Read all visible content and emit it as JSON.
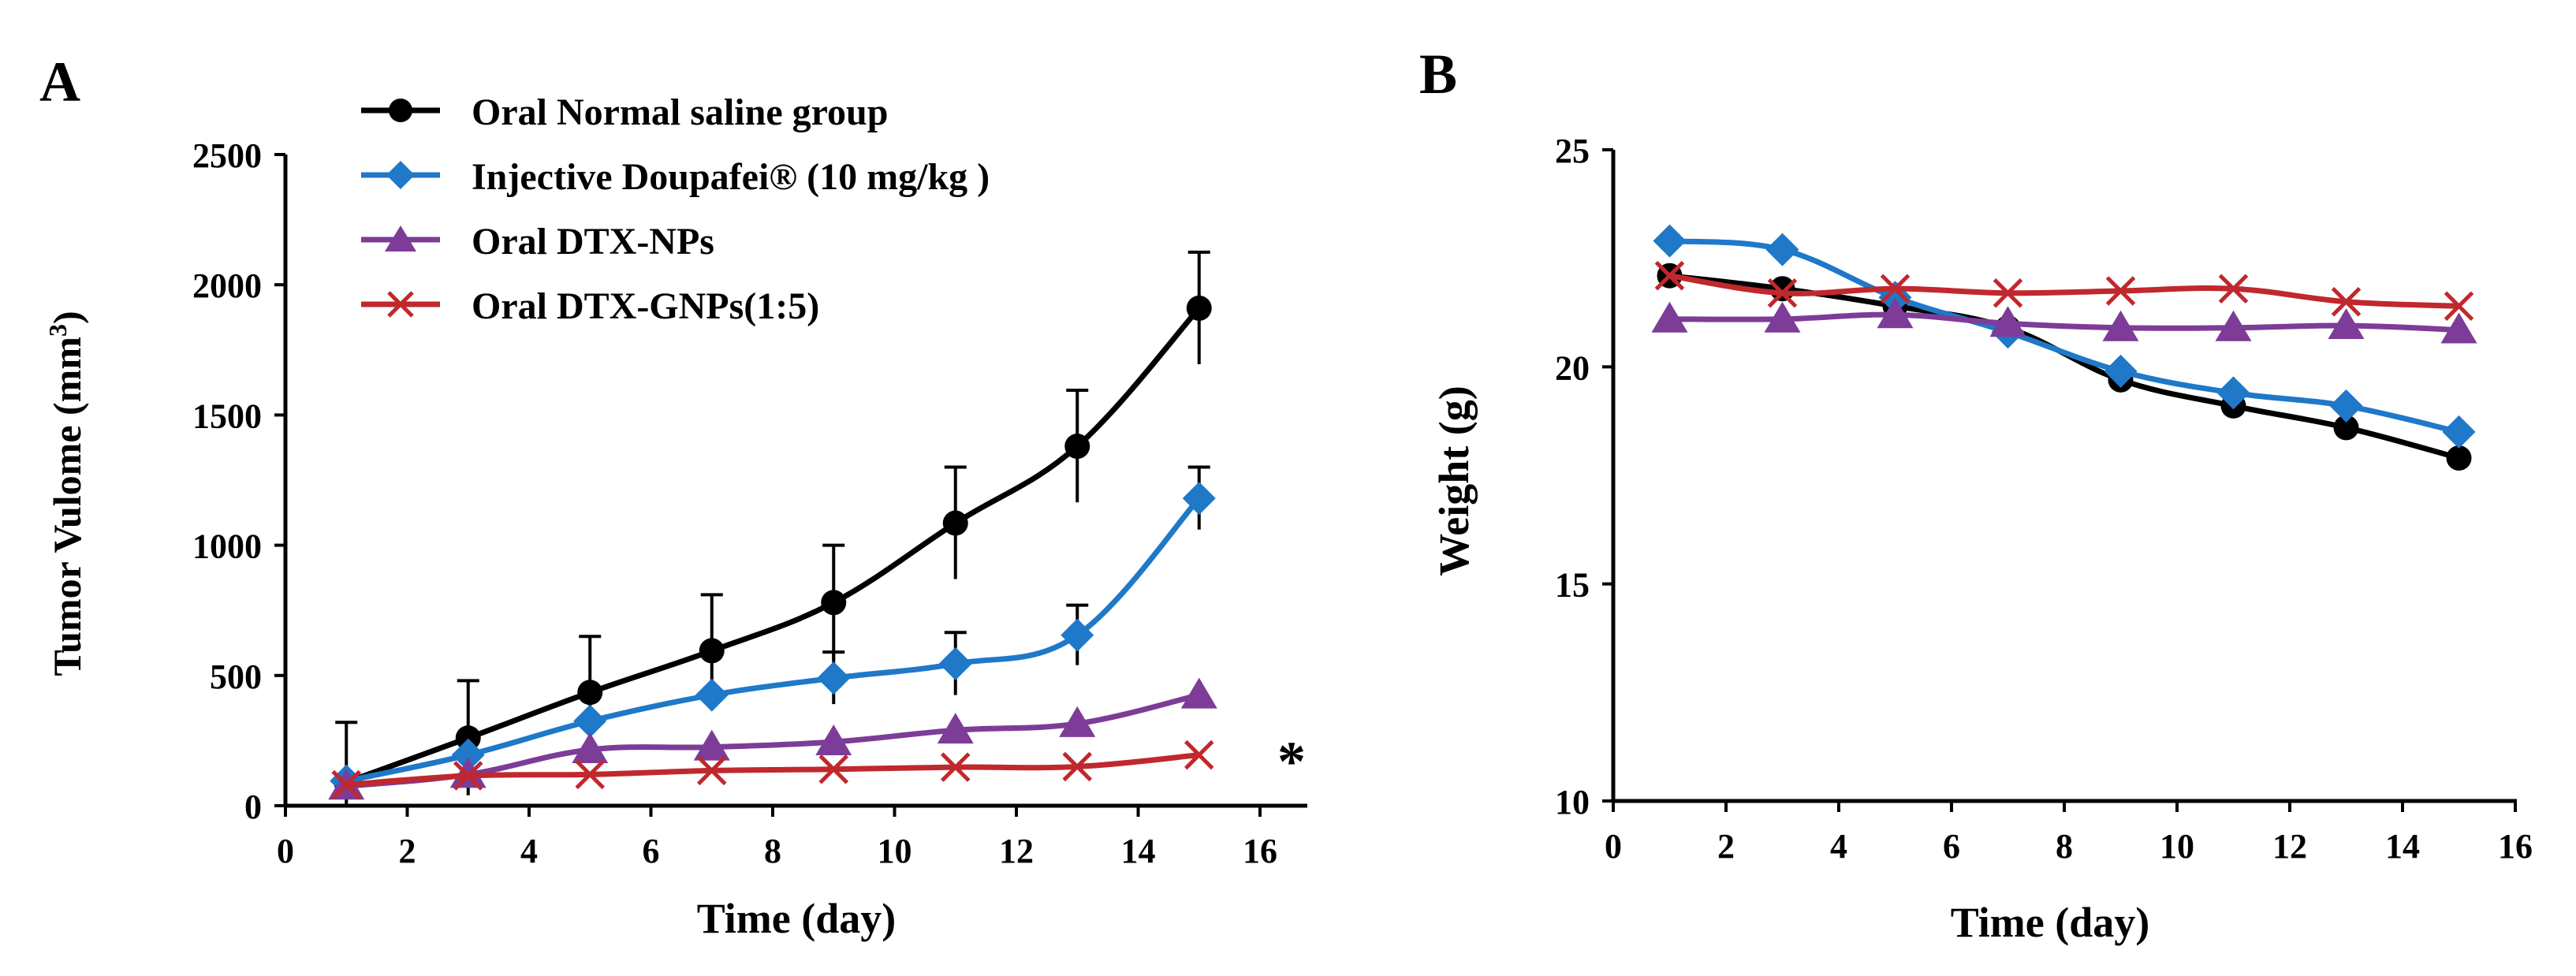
{
  "chart_data": [
    {
      "panel_label": "A",
      "type": "line",
      "title": "",
      "xlabel": "Time (day)",
      "ylabel": "Tumor Vulome (mm",
      "ylabel_sup": "3",
      "ylabel_close": ")",
      "xlim": [
        0,
        16
      ],
      "ylim": [
        0,
        2500
      ],
      "xticks": [
        0,
        2,
        4,
        6,
        8,
        10,
        12,
        14,
        16
      ],
      "yticks": [
        0,
        500,
        1000,
        1500,
        2000,
        2500
      ],
      "grid": false,
      "legend_position": "top-left",
      "annotation": "*",
      "series": [
        {
          "name": "Oral Normal saline group",
          "color": "#000000",
          "marker": "circle",
          "x": [
            1,
            3,
            5,
            7,
            9,
            11,
            13,
            15
          ],
          "y": [
            90,
            260,
            435,
            595,
            780,
            1085,
            1380,
            1910
          ],
          "err": [
            230,
            220,
            215,
            215,
            220,
            215,
            215,
            215
          ]
        },
        {
          "name": "Injective Doupafei® (10 mg/kg )",
          "color": "#1f78c8",
          "marker": "diamond",
          "x": [
            1,
            3,
            5,
            7,
            9,
            11,
            13,
            15
          ],
          "y": [
            95,
            195,
            325,
            425,
            490,
            545,
            655,
            1180
          ],
          "err": [
            0,
            0,
            0,
            0,
            100,
            120,
            115,
            120
          ]
        },
        {
          "name": "Oral DTX-NPs",
          "color": "#7d3c98",
          "marker": "triangle",
          "x": [
            1,
            3,
            5,
            7,
            9,
            11,
            13,
            15
          ],
          "y": [
            75,
            120,
            215,
            225,
            245,
            290,
            315,
            425
          ],
          "err": []
        },
        {
          "name": "Oral DTX-GNPs(1:5)",
          "color": "#c0282d",
          "marker": "x",
          "x": [
            1,
            3,
            5,
            7,
            9,
            11,
            13,
            15
          ],
          "y": [
            80,
            115,
            120,
            135,
            140,
            148,
            150,
            195
          ],
          "err": []
        }
      ]
    },
    {
      "panel_label": "B",
      "type": "line",
      "title": "",
      "xlabel": "Time (day)",
      "ylabel": "Weight (g)",
      "xlim": [
        0,
        16
      ],
      "ylim": [
        10,
        25
      ],
      "xticks": [
        0,
        2,
        4,
        6,
        8,
        10,
        12,
        14,
        16
      ],
      "yticks": [
        10,
        15,
        20,
        25
      ],
      "grid": false,
      "series": [
        {
          "name": "Oral Normal saline group",
          "color": "#000000",
          "marker": "circle",
          "x": [
            1,
            3,
            5,
            7,
            9,
            11,
            13,
            15
          ],
          "y": [
            22.1,
            21.8,
            21.4,
            20.9,
            19.7,
            19.1,
            18.6,
            17.9
          ]
        },
        {
          "name": "Injective Doupafei® (10 mg/kg )",
          "color": "#1f78c8",
          "marker": "diamond",
          "x": [
            1,
            3,
            5,
            7,
            9,
            11,
            13,
            15
          ],
          "y": [
            22.9,
            22.7,
            21.6,
            20.8,
            19.9,
            19.4,
            19.1,
            18.5
          ]
        },
        {
          "name": "Oral DTX-NPs",
          "color": "#7d3c98",
          "marker": "triangle",
          "x": [
            1,
            3,
            5,
            7,
            9,
            11,
            13,
            15
          ],
          "y": [
            21.1,
            21.1,
            21.2,
            21.0,
            20.9,
            20.9,
            20.95,
            20.85
          ]
        },
        {
          "name": "Oral DTX-GNPs(1:5)",
          "color": "#c0282d",
          "marker": "x",
          "x": [
            1,
            3,
            5,
            7,
            9,
            11,
            13,
            15
          ],
          "y": [
            22.1,
            21.7,
            21.8,
            21.7,
            21.75,
            21.8,
            21.5,
            21.4
          ]
        }
      ]
    }
  ]
}
